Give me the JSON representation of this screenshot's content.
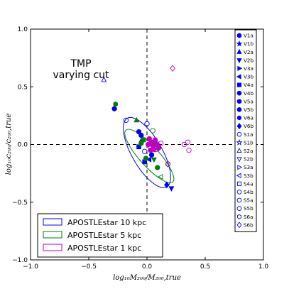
{
  "chart_data": {
    "type": "scatter",
    "xlabel": "log₁₀M₂₀₀/M₂₀₀,true",
    "ylabel": "log₁₀c₂₀₀/c₂₀₀,true",
    "xlim": [
      -1.0,
      1.0
    ],
    "ylim": [
      -1.0,
      1.0
    ],
    "xticks": [
      "−1.0",
      "−0.5",
      "0.0",
      "0.5",
      "1.0"
    ],
    "yticks": [
      "−1.0",
      "−0.5",
      "0.0",
      "0.5",
      "1.0"
    ],
    "grid": false,
    "reference_lines": {
      "x": 0.0,
      "y": 0.0,
      "style": "dashed"
    },
    "annotation": [
      "TMP",
      "varying cut"
    ],
    "ellipses": [
      {
        "name": "APOSTLEstar 10 kpc",
        "color": "#0000ff",
        "cx": 0.0,
        "cy": -0.07,
        "rx": 0.34,
        "ry": 0.13,
        "angle_deg": -60
      },
      {
        "name": "APOSTLEstar 5 kpc",
        "color": "#008000",
        "cx": 0.02,
        "cy": -0.1,
        "rx": 0.3,
        "ry": 0.085,
        "angle_deg": -48
      },
      {
        "name": "APOSTLEstar 1 kpc",
        "color": "#bf00bf",
        "cx": 0.06,
        "cy": -0.02,
        "rx": 0.055,
        "ry": 0.04,
        "angle_deg": -20
      }
    ],
    "legend": {
      "placement": "lower-left",
      "entries": [
        "APOSTLEstar 10 kpc",
        "APOSTLEstar 5 kpc",
        "APOSTLEstar 1 kpc"
      ]
    },
    "marker_legend": {
      "placement": "right",
      "entries": [
        {
          "label": "V1a",
          "marker": "circle",
          "filled": true
        },
        {
          "label": "V1b",
          "marker": "star",
          "filled": true
        },
        {
          "label": "V2a",
          "marker": "triangle-up",
          "filled": true
        },
        {
          "label": "V2b",
          "marker": "triangle-down",
          "filled": true
        },
        {
          "label": "V3a",
          "marker": "triangle-right",
          "filled": true
        },
        {
          "label": "V3b",
          "marker": "triangle-left",
          "filled": true
        },
        {
          "label": "V4a",
          "marker": "square",
          "filled": true
        },
        {
          "label": "V4b",
          "marker": "circle",
          "filled": true
        },
        {
          "label": "V5a",
          "marker": "circle",
          "filled": true
        },
        {
          "label": "V5b",
          "marker": "circle",
          "filled": true
        },
        {
          "label": "V6a",
          "marker": "hexagon",
          "filled": true
        },
        {
          "label": "V6b",
          "marker": "diamond",
          "filled": true
        },
        {
          "label": "S1a",
          "marker": "circle",
          "filled": false
        },
        {
          "label": "S1b",
          "marker": "star",
          "filled": false
        },
        {
          "label": "S2a",
          "marker": "triangle-up",
          "filled": false
        },
        {
          "label": "S2b",
          "marker": "triangle-down",
          "filled": false
        },
        {
          "label": "S3a",
          "marker": "triangle-right",
          "filled": false
        },
        {
          "label": "S3b",
          "marker": "triangle-left",
          "filled": false
        },
        {
          "label": "S4a",
          "marker": "square",
          "filled": false
        },
        {
          "label": "S4b",
          "marker": "circle",
          "filled": false
        },
        {
          "label": "S5a",
          "marker": "circle",
          "filled": false
        },
        {
          "label": "S5b",
          "marker": "circle",
          "filled": false
        },
        {
          "label": "S6a",
          "marker": "hexagon",
          "filled": false
        },
        {
          "label": "S6b",
          "marker": "diamond",
          "filled": false
        }
      ]
    },
    "points": [
      {
        "x": -0.37,
        "y": 0.56,
        "color": "#0000ff",
        "marker": "triangle-up",
        "filled": false
      },
      {
        "x": 0.22,
        "y": 0.66,
        "color": "#bf00bf",
        "marker": "diamond",
        "filled": false
      },
      {
        "x": -0.28,
        "y": 0.31,
        "color": "#0000ff",
        "marker": "circle",
        "filled": true
      },
      {
        "x": -0.18,
        "y": 0.21,
        "color": "#0000ff",
        "marker": "circle",
        "filled": false
      },
      {
        "x": 0.0,
        "y": 0.18,
        "color": "#0000ff",
        "marker": "circle",
        "filled": false
      },
      {
        "x": -0.07,
        "y": 0.11,
        "color": "#0000ff",
        "marker": "circle",
        "filled": true
      },
      {
        "x": -0.05,
        "y": 0.08,
        "color": "#0000ff",
        "marker": "circle",
        "filled": true
      },
      {
        "x": -0.05,
        "y": 0.03,
        "color": "#0000ff",
        "marker": "triangle-up",
        "filled": true
      },
      {
        "x": -0.07,
        "y": -0.02,
        "color": "#0000ff",
        "marker": "square",
        "filled": true
      },
      {
        "x": -0.02,
        "y": -0.15,
        "color": "#0000ff",
        "marker": "square",
        "filled": true
      },
      {
        "x": 0.02,
        "y": -0.13,
        "color": "#0000ff",
        "marker": "triangle-left",
        "filled": true
      },
      {
        "x": 0.04,
        "y": -0.09,
        "color": "#0000ff",
        "marker": "circle",
        "filled": true
      },
      {
        "x": 0.17,
        "y": -0.35,
        "color": "#0000ff",
        "marker": "diamond",
        "filled": true
      },
      {
        "x": 0.21,
        "y": -0.38,
        "color": "#0000ff",
        "marker": "triangle-down",
        "filled": true
      },
      {
        "x": -0.02,
        "y": -0.06,
        "color": "#0000ff",
        "marker": "circle",
        "filled": false
      },
      {
        "x": -0.27,
        "y": 0.35,
        "color": "#008000",
        "marker": "hexagon",
        "filled": true
      },
      {
        "x": -0.09,
        "y": 0.21,
        "color": "#008000",
        "marker": "triangle-up",
        "filled": true
      },
      {
        "x": 0.05,
        "y": 0.12,
        "color": "#008000",
        "marker": "circle",
        "filled": false
      },
      {
        "x": 0.06,
        "y": 0.0,
        "color": "#008000",
        "marker": "circle",
        "filled": true
      },
      {
        "x": -0.01,
        "y": -0.12,
        "color": "#008000",
        "marker": "circle",
        "filled": true
      },
      {
        "x": 0.06,
        "y": -0.13,
        "color": "#008000",
        "marker": "triangle-down",
        "filled": true
      },
      {
        "x": 0.09,
        "y": -0.2,
        "color": "#008000",
        "marker": "circle",
        "filled": true
      },
      {
        "x": 0.12,
        "y": -0.28,
        "color": "#008000",
        "marker": "triangle-left",
        "filled": false
      },
      {
        "x": 0.18,
        "y": -0.17,
        "color": "#008000",
        "marker": "circle",
        "filled": false
      },
      {
        "x": -0.05,
        "y": 0.01,
        "color": "#008000",
        "marker": "circle",
        "filled": true
      },
      {
        "x": -0.03,
        "y": 0.04,
        "color": "#008000",
        "marker": "square",
        "filled": true
      },
      {
        "x": 0.02,
        "y": 0.05,
        "color": "#bf00bf",
        "marker": "circle",
        "filled": true
      },
      {
        "x": 0.04,
        "y": 0.02,
        "color": "#bf00bf",
        "marker": "circle",
        "filled": true
      },
      {
        "x": 0.05,
        "y": -0.01,
        "color": "#bf00bf",
        "marker": "circle",
        "filled": true
      },
      {
        "x": 0.06,
        "y": -0.04,
        "color": "#bf00bf",
        "marker": "circle",
        "filled": true
      },
      {
        "x": 0.08,
        "y": 0.0,
        "color": "#bf00bf",
        "marker": "circle",
        "filled": true
      },
      {
        "x": 0.03,
        "y": -0.05,
        "color": "#bf00bf",
        "marker": "circle",
        "filled": true
      },
      {
        "x": 0.1,
        "y": -0.03,
        "color": "#bf00bf",
        "marker": "circle",
        "filled": true
      },
      {
        "x": 0.07,
        "y": 0.04,
        "color": "#bf00bf",
        "marker": "circle",
        "filled": true
      },
      {
        "x": 0.01,
        "y": 0.0,
        "color": "#bf00bf",
        "marker": "circle",
        "filled": true
      },
      {
        "x": 0.12,
        "y": 0.01,
        "color": "#bf00bf",
        "marker": "circle",
        "filled": false
      },
      {
        "x": 0.35,
        "y": 0.02,
        "color": "#bf00bf",
        "marker": "circle",
        "filled": false
      },
      {
        "x": 0.32,
        "y": 0.0,
        "color": "#bf00bf",
        "marker": "circle",
        "filled": false
      },
      {
        "x": 0.36,
        "y": -0.05,
        "color": "#bf00bf",
        "marker": "circle",
        "filled": false
      },
      {
        "x": 0.18,
        "y": -0.17,
        "color": "#bf00bf",
        "marker": "diamond",
        "filled": false
      }
    ]
  }
}
